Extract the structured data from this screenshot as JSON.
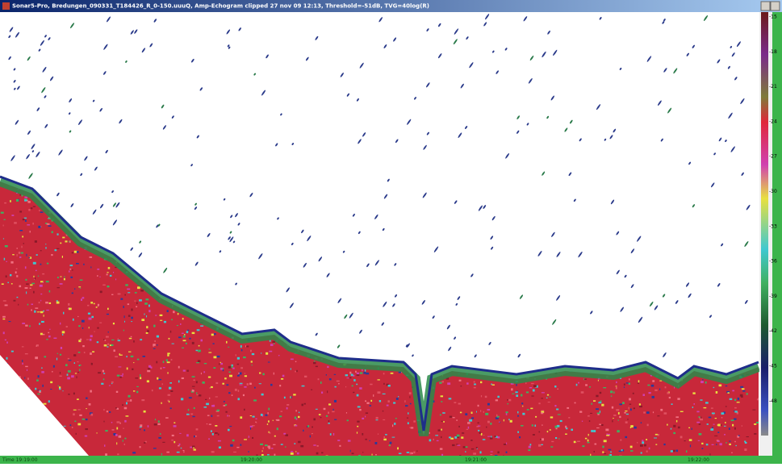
{
  "window": {
    "title": "Sonar5-Pro, Bredungen_090331_T184426_R_0-150.uuuQ, Amp-Echogram clipped 27 nov 09 12:13, Threshold=-51dB, TVG=40log(R)"
  },
  "colorbar": {
    "labels": [
      "-15",
      "-18",
      "-21",
      "-24",
      "-27",
      "-30",
      "-33",
      "-36",
      "-39",
      "-42",
      "-45",
      "-48"
    ]
  },
  "time_axis": {
    "labels": [
      "Time 19:19:00",
      "19:20:00",
      "19:21:00",
      "19:22:00"
    ]
  }
}
